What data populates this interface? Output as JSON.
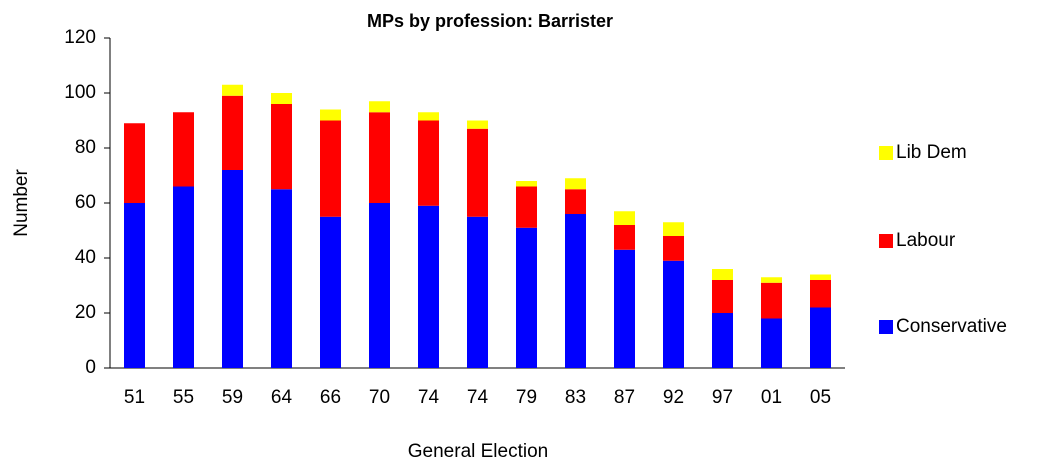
{
  "chart_data": {
    "type": "stacked_bar",
    "title": "MPs by profession: Barrister",
    "x_label": "General Election",
    "y_label": "Number",
    "categories": [
      "51",
      "55",
      "59",
      "64",
      "66",
      "70",
      "74",
      "74",
      "79",
      "83",
      "87",
      "92",
      "97",
      "01",
      "05"
    ],
    "series": [
      {
        "name": "Conservative",
        "color": "#0000ff",
        "values": [
          60,
          66,
          72,
          65,
          55,
          60,
          59,
          55,
          51,
          56,
          43,
          39,
          20,
          18,
          22
        ]
      },
      {
        "name": "Labour",
        "color": "#ff0000",
        "values": [
          29,
          27,
          27,
          31,
          35,
          33,
          31,
          32,
          15,
          9,
          9,
          9,
          12,
          13,
          10
        ]
      },
      {
        "name": "Lib Dem",
        "color": "#ffff00",
        "values": [
          0,
          0,
          4,
          4,
          4,
          4,
          3,
          3,
          2,
          4,
          5,
          5,
          4,
          2,
          2
        ]
      }
    ],
    "ylim": [
      0,
      120
    ],
    "yticks": [
      0,
      20,
      40,
      60,
      80,
      100,
      120
    ],
    "grid": false,
    "legend": "right"
  }
}
